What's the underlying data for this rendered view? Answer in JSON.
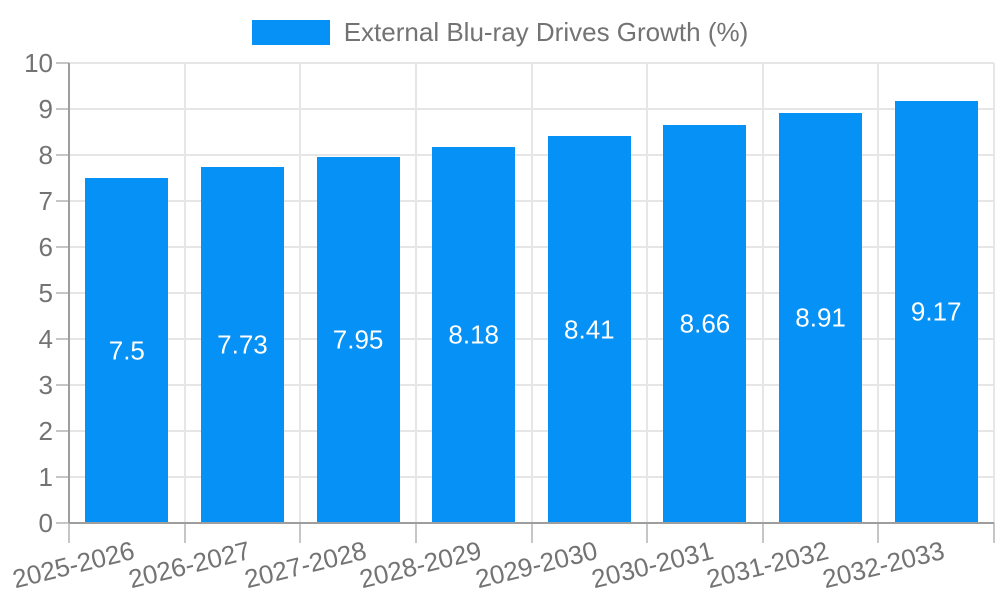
{
  "legend": {
    "label": "External Blu-ray Drives Growth (%)",
    "swatch": "legend-color-box"
  },
  "colors": {
    "bar": "#0591f5",
    "grid": "#e6e6e6",
    "axis": "#9e9e9e",
    "tick": "#c6c6c6",
    "text": "#737373",
    "bar_label": "#ffffff",
    "background": "#ffffff"
  },
  "axes": {
    "y_ticks": [
      "0",
      "1",
      "2",
      "3",
      "4",
      "5",
      "6",
      "7",
      "8",
      "9",
      "10"
    ]
  },
  "chart_data": {
    "type": "bar",
    "title": "",
    "legend_entries": [
      "External Blu-ray Drives Growth (%)"
    ],
    "legend_position": "top",
    "categories": [
      "2025-2026",
      "2026-2027",
      "2027-2028",
      "2028-2029",
      "2029-2030",
      "2030-2031",
      "2031-2032",
      "2032-2033"
    ],
    "values": [
      7.5,
      7.73,
      7.95,
      8.18,
      8.41,
      8.66,
      8.91,
      9.17
    ],
    "bar_labels": [
      "7.5",
      "7.73",
      "7.95",
      "8.18",
      "8.41",
      "8.66",
      "8.91",
      "9.17"
    ],
    "xlabel": "",
    "ylabel": "",
    "ylim": [
      0,
      10
    ],
    "ytick_step": 1,
    "grid": true,
    "x_label_rotation_deg": -14
  }
}
